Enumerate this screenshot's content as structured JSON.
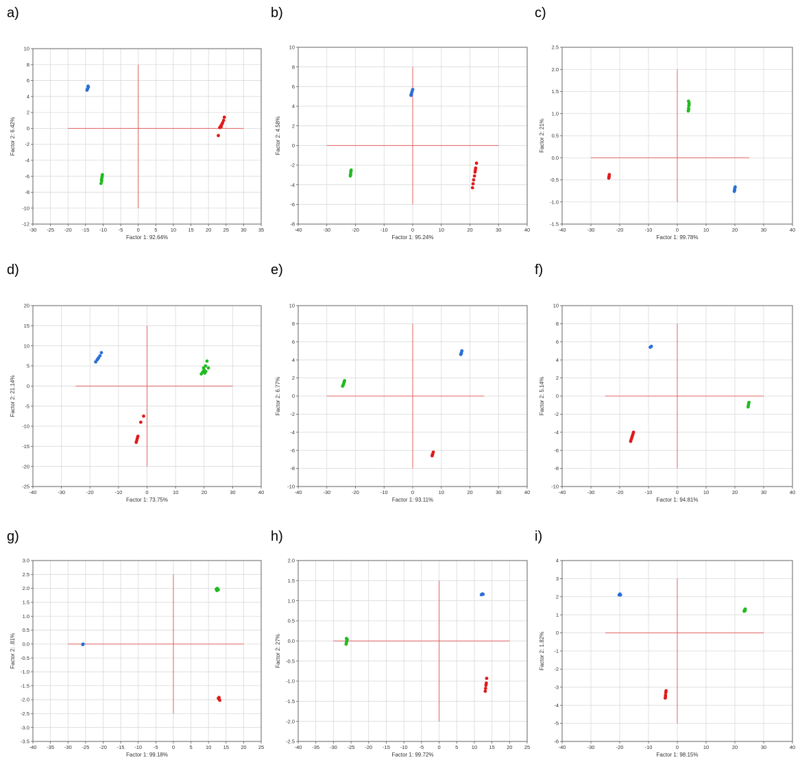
{
  "panels": [
    {
      "label": "a)"
    },
    {
      "label": "b)"
    },
    {
      "label": "c)"
    },
    {
      "label": "d)"
    },
    {
      "label": "e)"
    },
    {
      "label": "f)"
    },
    {
      "label": "g)"
    },
    {
      "label": "h)"
    },
    {
      "label": "i)"
    }
  ],
  "colors": {
    "blue": "#2a6fd6",
    "green": "#22bb22",
    "red": "#e01b1b",
    "cross": "#e06060",
    "grid": "#d9d9d9",
    "frame": "#555555"
  },
  "chart_data": [
    {
      "type": "scatter",
      "xlabel": "Factor 1: 92.64%",
      "ylabel": "Factor 2:  6.42%",
      "xlim": [
        -30,
        35
      ],
      "ylim": [
        -12,
        10
      ],
      "xstep": 5,
      "ystep": 2,
      "cross": {
        "h": [
          -20,
          30,
          0
        ],
        "v": [
          0,
          -10,
          8
        ]
      },
      "series": [
        {
          "color": "blue",
          "points": [
            [
              -14.6,
              4.8
            ],
            [
              -14.4,
              5.0
            ],
            [
              -14.2,
              5.2
            ],
            [
              -14.5,
              4.9
            ],
            [
              -14.3,
              5.3
            ]
          ]
        },
        {
          "color": "green",
          "points": [
            [
              -10.6,
              -6.9
            ],
            [
              -10.5,
              -6.5
            ],
            [
              -10.4,
              -6.3
            ],
            [
              -10.3,
              -6.0
            ],
            [
              -10.2,
              -5.8
            ],
            [
              -10.4,
              -6.6
            ],
            [
              -10.3,
              -6.1
            ]
          ]
        },
        {
          "color": "red",
          "points": [
            [
              22.8,
              -0.9
            ],
            [
              23.2,
              0.1
            ],
            [
              23.5,
              0.3
            ],
            [
              23.8,
              0.5
            ],
            [
              24.0,
              0.7
            ],
            [
              24.3,
              1.0
            ],
            [
              24.5,
              1.4
            ],
            [
              23.6,
              0.2
            ]
          ]
        }
      ]
    },
    {
      "type": "scatter",
      "xlabel": "Factor 1: 95.24%",
      "ylabel": "Factor 2:  4.58%",
      "xlim": [
        -40,
        40
      ],
      "ylim": [
        -8,
        10
      ],
      "xstep": 10,
      "ystep": 2,
      "cross": {
        "h": [
          -30,
          30,
          0
        ],
        "v": [
          0,
          -6,
          8
        ]
      },
      "series": [
        {
          "color": "blue",
          "points": [
            [
              -0.6,
              5.1
            ],
            [
              -0.4,
              5.3
            ],
            [
              -0.2,
              5.5
            ],
            [
              0.0,
              5.7
            ],
            [
              -0.5,
              5.2
            ]
          ]
        },
        {
          "color": "green",
          "points": [
            [
              -21.8,
              -3.1
            ],
            [
              -21.7,
              -2.9
            ],
            [
              -21.6,
              -2.7
            ],
            [
              -21.5,
              -2.5
            ],
            [
              -21.7,
              -3.0
            ],
            [
              -21.6,
              -2.6
            ]
          ]
        },
        {
          "color": "red",
          "points": [
            [
              20.9,
              -4.3
            ],
            [
              21.1,
              -3.9
            ],
            [
              21.3,
              -3.5
            ],
            [
              21.6,
              -3.1
            ],
            [
              21.8,
              -2.7
            ],
            [
              22.0,
              -2.3
            ],
            [
              22.3,
              -1.8
            ],
            [
              21.9,
              -2.5
            ]
          ]
        }
      ]
    },
    {
      "type": "scatter",
      "xlabel": "Factor 1: 99.78%",
      "ylabel": "Factor 2:   21%",
      "xlim": [
        -40,
        40
      ],
      "ylim": [
        -1.5,
        2.5
      ],
      "xstep": 10,
      "ystep": 0.5,
      "cross": {
        "h": [
          -30,
          25,
          0
        ],
        "v": [
          0,
          -1,
          2
        ]
      },
      "series": [
        {
          "color": "blue",
          "points": [
            [
              19.8,
              -0.76
            ],
            [
              19.9,
              -0.72
            ],
            [
              20.0,
              -0.68
            ],
            [
              20.1,
              -0.66
            ],
            [
              19.9,
              -0.74
            ]
          ]
        },
        {
          "color": "green",
          "points": [
            [
              3.8,
              1.06
            ],
            [
              3.9,
              1.12
            ],
            [
              4.0,
              1.18
            ],
            [
              4.1,
              1.24
            ],
            [
              3.9,
              1.28
            ],
            [
              4.0,
              1.1
            ],
            [
              4.1,
              1.2
            ]
          ]
        },
        {
          "color": "red",
          "points": [
            [
              -23.8,
              -0.46
            ],
            [
              -23.7,
              -0.42
            ],
            [
              -23.6,
              -0.38
            ],
            [
              -23.7,
              -0.44
            ]
          ]
        }
      ]
    },
    {
      "type": "scatter",
      "xlabel": "Factor 1: 73.75%",
      "ylabel": "Factor 2: 21.14%",
      "xlim": [
        -40,
        40
      ],
      "ylim": [
        -25,
        20
      ],
      "xstep": 10,
      "ystep": 5,
      "cross": {
        "h": [
          -25,
          30,
          0
        ],
        "v": [
          0,
          -20,
          15
        ]
      },
      "series": [
        {
          "color": "blue",
          "points": [
            [
              -18.0,
              6.0
            ],
            [
              -17.5,
              6.5
            ],
            [
              -17.0,
              7.0
            ],
            [
              -16.5,
              7.5
            ],
            [
              -16.0,
              8.3
            ],
            [
              -17.2,
              6.8
            ]
          ]
        },
        {
          "color": "green",
          "points": [
            [
              19.0,
              3.0
            ],
            [
              19.5,
              3.5
            ],
            [
              20.0,
              4.0
            ],
            [
              20.5,
              5.0
            ],
            [
              21.0,
              6.2
            ],
            [
              21.5,
              4.5
            ],
            [
              20.2,
              3.2
            ],
            [
              19.8,
              4.5
            ],
            [
              20.6,
              3.6
            ]
          ]
        },
        {
          "color": "red",
          "points": [
            [
              -3.8,
              -14.0
            ],
            [
              -3.6,
              -13.5
            ],
            [
              -3.4,
              -13.0
            ],
            [
              -3.2,
              -12.5
            ],
            [
              -2.2,
              -9.0
            ],
            [
              -1.2,
              -7.5
            ]
          ]
        }
      ]
    },
    {
      "type": "scatter",
      "xlabel": "Factor 1: 93.11%",
      "ylabel": "Factor 2:  6.77%",
      "xlim": [
        -40,
        40
      ],
      "ylim": [
        -10,
        10
      ],
      "xstep": 10,
      "ystep": 2,
      "cross": {
        "h": [
          -30,
          25,
          0
        ],
        "v": [
          0,
          -8,
          8
        ]
      },
      "series": [
        {
          "color": "blue",
          "points": [
            [
              16.8,
              4.6
            ],
            [
              17.0,
              4.8
            ],
            [
              17.2,
              5.0
            ],
            [
              17.0,
              4.7
            ]
          ]
        },
        {
          "color": "green",
          "points": [
            [
              -24.5,
              1.1
            ],
            [
              -24.2,
              1.3
            ],
            [
              -24.0,
              1.5
            ],
            [
              -23.8,
              1.7
            ],
            [
              -24.3,
              1.2
            ],
            [
              -23.9,
              1.6
            ]
          ]
        },
        {
          "color": "red",
          "points": [
            [
              6.8,
              -6.6
            ],
            [
              7.0,
              -6.4
            ],
            [
              7.2,
              -6.2
            ],
            [
              6.9,
              -6.5
            ]
          ]
        }
      ]
    },
    {
      "type": "scatter",
      "xlabel": "Factor 1: 94.81%",
      "ylabel": "Factor 2:  5.14%",
      "xlim": [
        -40,
        40
      ],
      "ylim": [
        -10,
        10
      ],
      "xstep": 10,
      "ystep": 2,
      "cross": {
        "h": [
          -25,
          30,
          0
        ],
        "v": [
          0,
          -8,
          8
        ]
      },
      "series": [
        {
          "color": "blue",
          "points": [
            [
              -9.4,
              5.4
            ],
            [
              -9.0,
              5.5
            ]
          ]
        },
        {
          "color": "green",
          "points": [
            [
              24.6,
              -1.2
            ],
            [
              24.7,
              -1.0
            ],
            [
              24.8,
              -0.8
            ],
            [
              24.9,
              -0.7
            ]
          ]
        },
        {
          "color": "red",
          "points": [
            [
              -16.2,
              -5.0
            ],
            [
              -16.0,
              -4.8
            ],
            [
              -15.8,
              -4.6
            ],
            [
              -15.6,
              -4.4
            ],
            [
              -15.4,
              -4.2
            ],
            [
              -15.2,
              -4.0
            ]
          ]
        }
      ]
    },
    {
      "type": "scatter",
      "xlabel": "Factor 1: 99.18%",
      "ylabel": "Factor 2:   .81%",
      "xlim": [
        -40,
        25
      ],
      "ylim": [
        -3.5,
        3.0
      ],
      "xstep": 5,
      "ystep": 0.5,
      "cross": {
        "h": [
          -30,
          20,
          0
        ],
        "v": [
          0,
          -2.5,
          2.5
        ]
      },
      "series": [
        {
          "color": "blue",
          "points": [
            [
              -25.8,
              -0.02
            ],
            [
              -25.7,
              0.0
            ]
          ]
        },
        {
          "color": "green",
          "points": [
            [
              12.2,
              1.97
            ],
            [
              12.5,
              2.0
            ],
            [
              12.8,
              1.95
            ],
            [
              12.4,
              1.92
            ]
          ]
        },
        {
          "color": "red",
          "points": [
            [
              12.8,
              -1.95
            ],
            [
              13.0,
              -1.98
            ],
            [
              13.2,
              -2.02
            ],
            [
              13.0,
              -1.92
            ]
          ]
        }
      ]
    },
    {
      "type": "scatter",
      "xlabel": "Factor 1: 99.72%",
      "ylabel": "Factor 2:   27%",
      "xlim": [
        -40,
        25
      ],
      "ylim": [
        -2.5,
        2.0
      ],
      "xstep": 5,
      "ystep": 0.5,
      "cross": {
        "h": [
          -30,
          20,
          0
        ],
        "v": [
          0,
          -2,
          1.5
        ]
      },
      "series": [
        {
          "color": "blue",
          "points": [
            [
              12.0,
              1.15
            ],
            [
              12.3,
              1.17
            ],
            [
              12.5,
              1.16
            ]
          ]
        },
        {
          "color": "green",
          "points": [
            [
              -26.4,
              -0.08
            ],
            [
              -26.3,
              -0.04
            ],
            [
              -26.2,
              0.0
            ],
            [
              -26.1,
              0.04
            ],
            [
              -26.3,
              0.06
            ]
          ]
        },
        {
          "color": "red",
          "points": [
            [
              13.1,
              -1.25
            ],
            [
              13.2,
              -1.18
            ],
            [
              13.3,
              -1.1
            ],
            [
              13.4,
              -1.05
            ],
            [
              13.5,
              -0.93
            ]
          ]
        }
      ]
    },
    {
      "type": "scatter",
      "xlabel": "Factor 1: 98.15%",
      "ylabel": "Factor 2:  1.82%",
      "xlim": [
        -40,
        40
      ],
      "ylim": [
        -6,
        4
      ],
      "xstep": 10,
      "ystep": 1,
      "cross": {
        "h": [
          -25,
          30,
          0
        ],
        "v": [
          0,
          -5,
          3
        ]
      },
      "series": [
        {
          "color": "blue",
          "points": [
            [
              -20.2,
              2.1
            ],
            [
              -19.9,
              2.15
            ],
            [
              -19.7,
              2.1
            ]
          ]
        },
        {
          "color": "green",
          "points": [
            [
              23.2,
              1.2
            ],
            [
              23.4,
              1.27
            ],
            [
              23.6,
              1.32
            ],
            [
              23.5,
              1.22
            ]
          ]
        },
        {
          "color": "red",
          "points": [
            [
              -4.2,
              -3.6
            ],
            [
              -4.1,
              -3.45
            ],
            [
              -4.0,
              -3.3
            ],
            [
              -3.9,
              -3.2
            ],
            [
              -4.1,
              -3.55
            ]
          ]
        }
      ]
    }
  ]
}
